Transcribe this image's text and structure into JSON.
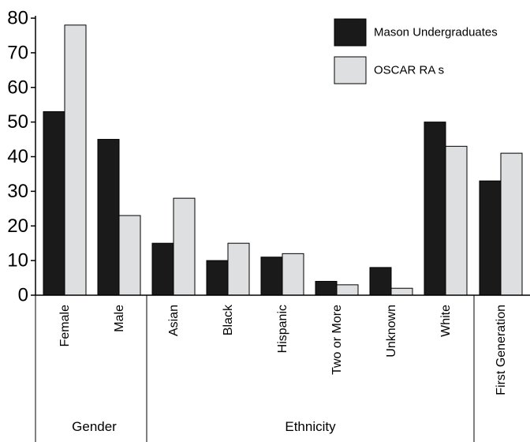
{
  "chart_data": {
    "type": "bar",
    "categories": [
      "Female",
      "Male",
      "Asian",
      "Black",
      "Hispanic",
      "Two or More",
      "Unknown",
      "White",
      "First Generation"
    ],
    "groups": [
      {
        "label": "Gender",
        "categories": [
          "Female",
          "Male"
        ]
      },
      {
        "label": "Ethnicity",
        "categories": [
          "Asian",
          "Black",
          "Hispanic",
          "Two or More",
          "Unknown",
          "White"
        ]
      },
      {
        "label": "",
        "categories": [
          "First Generation"
        ]
      }
    ],
    "series": [
      {
        "name": "Mason Undergraduates",
        "color": "#1a1a1a",
        "values": [
          53,
          45,
          15,
          10,
          11,
          4,
          8,
          50,
          33
        ]
      },
      {
        "name": "OSCAR RA s",
        "color": "#dedfe0",
        "values": [
          78,
          23,
          28,
          15,
          12,
          3,
          2,
          43,
          41
        ]
      }
    ],
    "ylim": [
      0,
      80
    ],
    "yticks": [
      "0",
      "10",
      "20",
      "30",
      "40",
      "50",
      "60",
      "70",
      "80"
    ],
    "legend_position": "top-right",
    "grid": false,
    "title": "",
    "xlabel": "",
    "ylabel": ""
  }
}
